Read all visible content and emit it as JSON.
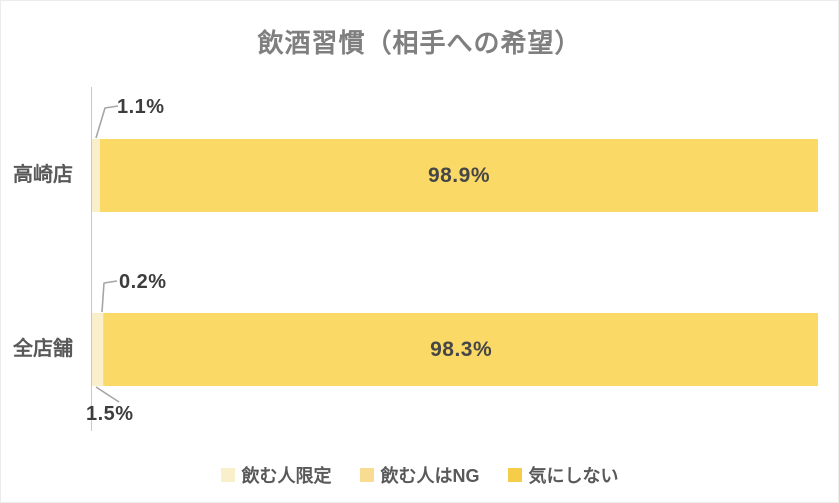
{
  "chart_data": {
    "type": "bar",
    "orientation": "horizontal",
    "stacked": true,
    "title": "飲酒習慣（相手への希望）",
    "categories": [
      "高崎店",
      "全店舗"
    ],
    "series": [
      {
        "name": "飲む人限定",
        "color": "#FAEFCB",
        "values": [
          1.1,
          1.5
        ]
      },
      {
        "name": "飲む人はNG",
        "color": "#F8DC92",
        "values": [
          0.0,
          0.2
        ]
      },
      {
        "name": "気にしない",
        "color": "#F6CD49",
        "bar_color": "#FAD966",
        "values": [
          98.9,
          98.3
        ]
      }
    ],
    "xlim": [
      0,
      100
    ],
    "value_unit": "%",
    "legend_position": "bottom",
    "grid": false
  },
  "labels": {
    "takasaki_limited": "1.1%",
    "takasaki_ok": "98.9%",
    "zentenpo_ng": "0.2%",
    "zentenpo_limited": "1.5%",
    "zentenpo_ok": "98.3%"
  },
  "colors": {
    "title": "#7F7F7F",
    "category_label": "#595959",
    "data_label": "#464646",
    "callout_label": "#3D3D3D",
    "leader_line": "#A6A6A6",
    "axis_line": "#C9C9C9",
    "background": "#FFFFFF"
  }
}
